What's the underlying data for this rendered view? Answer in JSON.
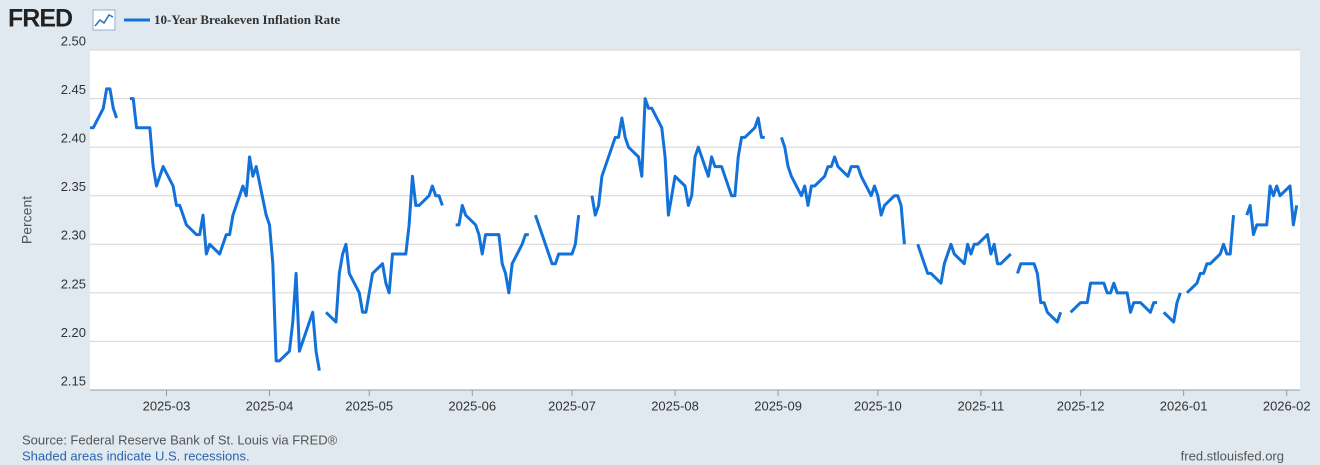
{
  "chart_data": {
    "type": "line",
    "logo": "FRED",
    "y_label": "Percent",
    "source": "Source: Federal Reserve Bank of St. Louis via FRED®",
    "note": "Shaded areas indicate U.S. recessions.",
    "site": "fred.stlouisfed.org",
    "grid": true,
    "xlim": [
      "2025-02-06",
      "2026-02-05"
    ],
    "xticks": [
      {
        "value": "2025-03-01",
        "label": "2025-03"
      },
      {
        "value": "2025-04-01",
        "label": "2025-04"
      },
      {
        "value": "2025-05-01",
        "label": "2025-05"
      },
      {
        "value": "2025-06-01",
        "label": "2025-06"
      },
      {
        "value": "2025-07-01",
        "label": "2025-07"
      },
      {
        "value": "2025-08-01",
        "label": "2025-08"
      },
      {
        "value": "2025-09-01",
        "label": "2025-09"
      },
      {
        "value": "2025-10-01",
        "label": "2025-10"
      },
      {
        "value": "2025-11-01",
        "label": "2025-11"
      },
      {
        "value": "2025-12-01",
        "label": "2025-12"
      },
      {
        "value": "2026-01-01",
        "label": "2026-01"
      },
      {
        "value": "2026-02-01",
        "label": "2026-02"
      }
    ],
    "ylim": [
      2.15,
      2.5
    ],
    "yticks": [
      2.15,
      {
        "value": 2.2,
        "label": "2.20"
      },
      2.25,
      {
        "value": 2.3,
        "label": "2.30"
      },
      2.35,
      {
        "value": 2.4,
        "label": "2.40"
      },
      2.45,
      {
        "value": 2.5,
        "label": "2.50"
      }
    ],
    "x": [
      "2025-02-06",
      "2025-02-07",
      "2025-02-10",
      "2025-02-11",
      "2025-02-12",
      "2025-02-13",
      "2025-02-14",
      "2025-02-17",
      "2025-02-18",
      "2025-02-19",
      "2025-02-20",
      "2025-02-21",
      "2025-02-24",
      "2025-02-25",
      "2025-02-26",
      "2025-02-27",
      "2025-02-28",
      "2025-03-03",
      "2025-03-04",
      "2025-03-05",
      "2025-03-06",
      "2025-03-07",
      "2025-03-10",
      "2025-03-11",
      "2025-03-12",
      "2025-03-13",
      "2025-03-14",
      "2025-03-17",
      "2025-03-18",
      "2025-03-19",
      "2025-03-20",
      "2025-03-21",
      "2025-03-24",
      "2025-03-25",
      "2025-03-26",
      "2025-03-27",
      "2025-03-28",
      "2025-03-31",
      "2025-04-01",
      "2025-04-02",
      "2025-04-03",
      "2025-04-04",
      "2025-04-07",
      "2025-04-08",
      "2025-04-09",
      "2025-04-10",
      "2025-04-11",
      "2025-04-14",
      "2025-04-15",
      "2025-04-16",
      "2025-04-17",
      "2025-04-18",
      "2025-04-21",
      "2025-04-22",
      "2025-04-23",
      "2025-04-24",
      "2025-04-25",
      "2025-04-28",
      "2025-04-29",
      "2025-04-30",
      "2025-05-01",
      "2025-05-02",
      "2025-05-05",
      "2025-05-06",
      "2025-05-07",
      "2025-05-08",
      "2025-05-09",
      "2025-05-12",
      "2025-05-13",
      "2025-05-14",
      "2025-05-15",
      "2025-05-16",
      "2025-05-19",
      "2025-05-20",
      "2025-05-21",
      "2025-05-22",
      "2025-05-23",
      "2025-05-26",
      "2025-05-27",
      "2025-05-28",
      "2025-05-29",
      "2025-05-30",
      "2025-06-02",
      "2025-06-03",
      "2025-06-04",
      "2025-06-05",
      "2025-06-06",
      "2025-06-09",
      "2025-06-10",
      "2025-06-11",
      "2025-06-12",
      "2025-06-13",
      "2025-06-16",
      "2025-06-17",
      "2025-06-18",
      "2025-06-19",
      "2025-06-20",
      "2025-06-23",
      "2025-06-24",
      "2025-06-25",
      "2025-06-26",
      "2025-06-27",
      "2025-06-30",
      "2025-07-01",
      "2025-07-02",
      "2025-07-03",
      "2025-07-04",
      "2025-07-07",
      "2025-07-08",
      "2025-07-09",
      "2025-07-10",
      "2025-07-11",
      "2025-07-14",
      "2025-07-15",
      "2025-07-16",
      "2025-07-17",
      "2025-07-18",
      "2025-07-21",
      "2025-07-22",
      "2025-07-23",
      "2025-07-24",
      "2025-07-25",
      "2025-07-28",
      "2025-07-29",
      "2025-07-30",
      "2025-07-31",
      "2025-08-01",
      "2025-08-04",
      "2025-08-05",
      "2025-08-06",
      "2025-08-07",
      "2025-08-08",
      "2025-08-11",
      "2025-08-12",
      "2025-08-13",
      "2025-08-14",
      "2025-08-15",
      "2025-08-18",
      "2025-08-19",
      "2025-08-20",
      "2025-08-21",
      "2025-08-22",
      "2025-08-25",
      "2025-08-26",
      "2025-08-27",
      "2025-08-28",
      "2025-08-29",
      "2025-09-01",
      "2025-09-02",
      "2025-09-03",
      "2025-09-04",
      "2025-09-05",
      "2025-09-08",
      "2025-09-09",
      "2025-09-10",
      "2025-09-11",
      "2025-09-12",
      "2025-09-15",
      "2025-09-16",
      "2025-09-17",
      "2025-09-18",
      "2025-09-19",
      "2025-09-22",
      "2025-09-23",
      "2025-09-24",
      "2025-09-25",
      "2025-09-26",
      "2025-09-29",
      "2025-09-30",
      "2025-10-01",
      "2025-10-02",
      "2025-10-03",
      "2025-10-06",
      "2025-10-07",
      "2025-10-08",
      "2025-10-09",
      "2025-10-10",
      "2025-10-13",
      "2025-10-14",
      "2025-10-15",
      "2025-10-16",
      "2025-10-17",
      "2025-10-20",
      "2025-10-21",
      "2025-10-22",
      "2025-10-23",
      "2025-10-24",
      "2025-10-27",
      "2025-10-28",
      "2025-10-29",
      "2025-10-30",
      "2025-10-31",
      "2025-11-03",
      "2025-11-04",
      "2025-11-05",
      "2025-11-06",
      "2025-11-07",
      "2025-11-10",
      "2025-11-11",
      "2025-11-12",
      "2025-11-13",
      "2025-11-14",
      "2025-11-17",
      "2025-11-18",
      "2025-11-19",
      "2025-11-20",
      "2025-11-21",
      "2025-11-24",
      "2025-11-25",
      "2025-11-26",
      "2025-11-27",
      "2025-11-28",
      "2025-12-01",
      "2025-12-02",
      "2025-12-03",
      "2025-12-04",
      "2025-12-05",
      "2025-12-08",
      "2025-12-09",
      "2025-12-10",
      "2025-12-11",
      "2025-12-12",
      "2025-12-15",
      "2025-12-16",
      "2025-12-17",
      "2025-12-18",
      "2025-12-19",
      "2025-12-22",
      "2025-12-23",
      "2025-12-24",
      "2025-12-25",
      "2025-12-26",
      "2025-12-29",
      "2025-12-30",
      "2025-12-31",
      "2026-01-01",
      "2026-01-02",
      "2026-01-05",
      "2026-01-06",
      "2026-01-07",
      "2026-01-08",
      "2026-01-09",
      "2026-01-12",
      "2026-01-13",
      "2026-01-14",
      "2026-01-15",
      "2026-01-16",
      "2026-01-19",
      "2026-01-20",
      "2026-01-21",
      "2026-01-22",
      "2026-01-23",
      "2026-01-26",
      "2026-01-27",
      "2026-01-28",
      "2026-01-29",
      "2026-01-30",
      "2026-02-02",
      "2026-02-03",
      "2026-02-04"
    ],
    "series": [
      {
        "name": "10-Year Breakeven Inflation Rate",
        "color": "#1372d9",
        "values": [
          2.42,
          2.42,
          2.44,
          2.46,
          2.46,
          2.44,
          2.43,
          null,
          2.45,
          2.45,
          2.42,
          2.42,
          2.42,
          2.38,
          2.36,
          2.37,
          2.38,
          2.36,
          2.34,
          2.34,
          2.33,
          2.32,
          2.31,
          2.31,
          2.33,
          2.29,
          2.3,
          2.29,
          2.3,
          2.31,
          2.31,
          2.33,
          2.36,
          2.35,
          2.39,
          2.37,
          2.38,
          2.33,
          2.32,
          2.28,
          2.18,
          2.18,
          2.19,
          2.22,
          2.27,
          2.19,
          2.2,
          2.23,
          2.19,
          2.17,
          null,
          2.23,
          2.22,
          2.27,
          2.29,
          2.3,
          2.27,
          2.25,
          2.23,
          2.23,
          2.25,
          2.27,
          2.28,
          2.26,
          2.25,
          2.29,
          2.29,
          2.29,
          2.32,
          2.37,
          2.34,
          2.34,
          2.35,
          2.36,
          2.35,
          2.35,
          2.34,
          null,
          2.32,
          2.32,
          2.34,
          2.33,
          2.32,
          2.31,
          2.29,
          2.31,
          2.31,
          2.31,
          2.28,
          2.27,
          2.25,
          2.28,
          2.3,
          2.31,
          2.31,
          null,
          2.33,
          2.3,
          2.29,
          2.28,
          2.28,
          2.29,
          2.29,
          2.29,
          2.3,
          2.33,
          null,
          2.35,
          2.33,
          2.34,
          2.37,
          2.38,
          2.41,
          2.41,
          2.43,
          2.41,
          2.4,
          2.39,
          2.37,
          2.45,
          2.44,
          2.44,
          2.42,
          2.39,
          2.33,
          2.35,
          2.37,
          2.36,
          2.34,
          2.35,
          2.39,
          2.4,
          2.37,
          2.39,
          2.38,
          2.38,
          2.38,
          2.35,
          2.35,
          2.39,
          2.41,
          2.41,
          2.42,
          2.43,
          2.41,
          2.41,
          null,
          null,
          2.41,
          2.4,
          2.38,
          2.37,
          2.35,
          2.36,
          2.34,
          2.36,
          2.36,
          2.37,
          2.38,
          2.38,
          2.39,
          2.38,
          2.37,
          2.38,
          2.38,
          2.38,
          2.37,
          2.35,
          2.36,
          2.35,
          2.33,
          2.34,
          2.35,
          2.35,
          2.34,
          2.3,
          null,
          2.3,
          2.29,
          2.28,
          2.27,
          2.27,
          2.26,
          2.28,
          2.29,
          2.3,
          2.29,
          2.28,
          2.3,
          2.29,
          2.3,
          2.3,
          2.31,
          2.29,
          2.3,
          2.28,
          2.28,
          2.29,
          null,
          2.27,
          2.28,
          2.28,
          2.28,
          2.27,
          2.24,
          2.24,
          2.23,
          2.22,
          2.23,
          null,
          null,
          2.23,
          2.24,
          2.24,
          2.24,
          2.26,
          2.26,
          2.26,
          2.25,
          2.25,
          2.26,
          2.25,
          2.25,
          2.23,
          2.24,
          2.24,
          2.24,
          2.23,
          2.24,
          2.24,
          null,
          2.23,
          2.22,
          2.24,
          2.25,
          null,
          2.25,
          2.26,
          2.27,
          2.27,
          2.28,
          2.28,
          2.29,
          2.3,
          2.29,
          2.29,
          2.33,
          null,
          2.33,
          2.34,
          2.31,
          2.32,
          2.32,
          2.36,
          2.35,
          2.36,
          2.35,
          2.36,
          2.32,
          2.34
        ]
      }
    ]
  }
}
